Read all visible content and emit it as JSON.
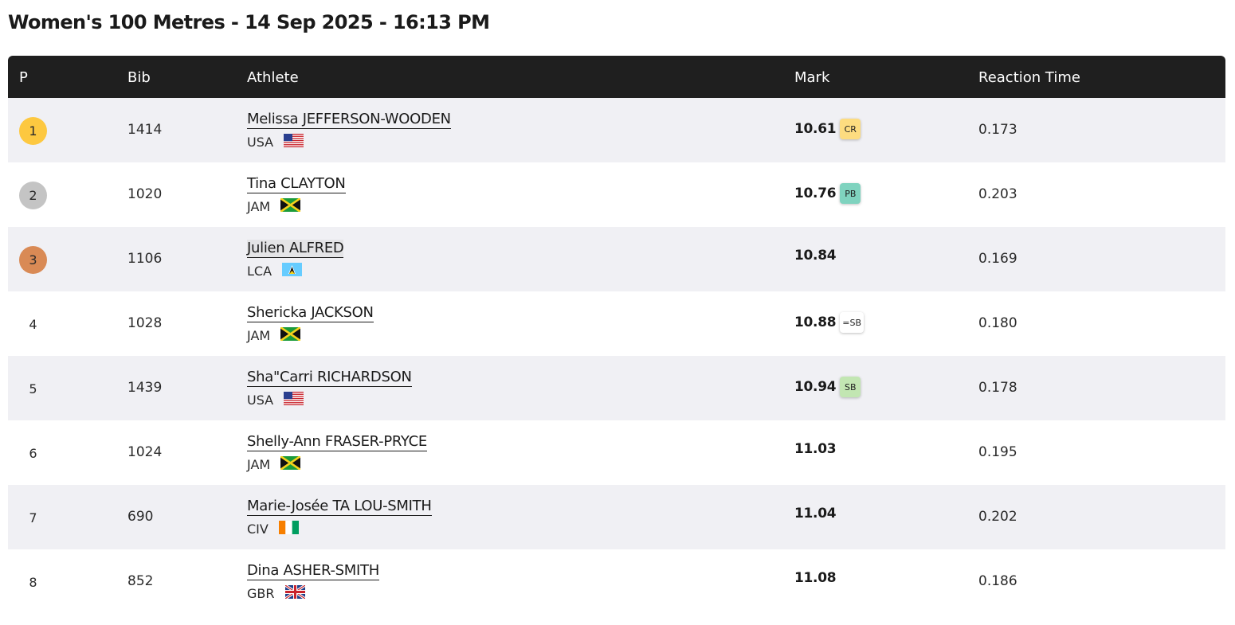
{
  "title": "Women's 100 Metres - 14 Sep 2025 - 16:13 PM",
  "headers": {
    "pos": "P",
    "bib": "Bib",
    "athlete": "Athlete",
    "mark": "Mark",
    "reaction": "Reaction Time"
  },
  "colors": {
    "header_bg": "#1f1f1f",
    "row_shade": "#f0f0f4",
    "gold": "#fdc840",
    "silver": "#c4c4c4",
    "bronze": "#d98a55",
    "badge_cr": "#fddc80",
    "badge_pb": "#7fd3bf",
    "badge_sb": "#c2e6b2",
    "badge_eq_sb": "#ffffff"
  },
  "rows": [
    {
      "pos": "1",
      "medal": "gold",
      "bib": "1414",
      "name": "Melissa JEFFERSON-WOODEN",
      "country": "USA",
      "flag": "usa-flag-icon",
      "mark": "10.61",
      "badge": "CR",
      "reaction": "0.173"
    },
    {
      "pos": "2",
      "medal": "silver",
      "bib": "1020",
      "name": "Tina CLAYTON",
      "country": "JAM",
      "flag": "jamaica-flag-icon",
      "mark": "10.76",
      "badge": "PB",
      "reaction": "0.203"
    },
    {
      "pos": "3",
      "medal": "bronze",
      "bib": "1106",
      "name": "Julien ALFRED",
      "country": "LCA",
      "flag": "saint-lucia-flag-icon",
      "mark": "10.84",
      "badge": "",
      "reaction": "0.169"
    },
    {
      "pos": "4",
      "medal": "",
      "bib": "1028",
      "name": "Shericka JACKSON",
      "country": "JAM",
      "flag": "jamaica-flag-icon",
      "mark": "10.88",
      "badge": "=SB",
      "reaction": "0.180"
    },
    {
      "pos": "5",
      "medal": "",
      "bib": "1439",
      "name": "Sha\"Carri RICHARDSON",
      "country": "USA",
      "flag": "usa-flag-icon",
      "mark": "10.94",
      "badge": "SB",
      "reaction": "0.178"
    },
    {
      "pos": "6",
      "medal": "",
      "bib": "1024",
      "name": "Shelly-Ann FRASER-PRYCE",
      "country": "JAM",
      "flag": "jamaica-flag-icon",
      "mark": "11.03",
      "badge": "",
      "reaction": "0.195"
    },
    {
      "pos": "7",
      "medal": "",
      "bib": "690",
      "name": "Marie-Josée TA LOU-SMITH",
      "country": "CIV",
      "flag": "ivory-coast-flag-icon",
      "mark": "11.04",
      "badge": "",
      "reaction": "0.202"
    },
    {
      "pos": "8",
      "medal": "",
      "bib": "852",
      "name": "Dina ASHER-SMITH",
      "country": "GBR",
      "flag": "uk-flag-icon",
      "mark": "11.08",
      "badge": "",
      "reaction": "0.186"
    }
  ]
}
